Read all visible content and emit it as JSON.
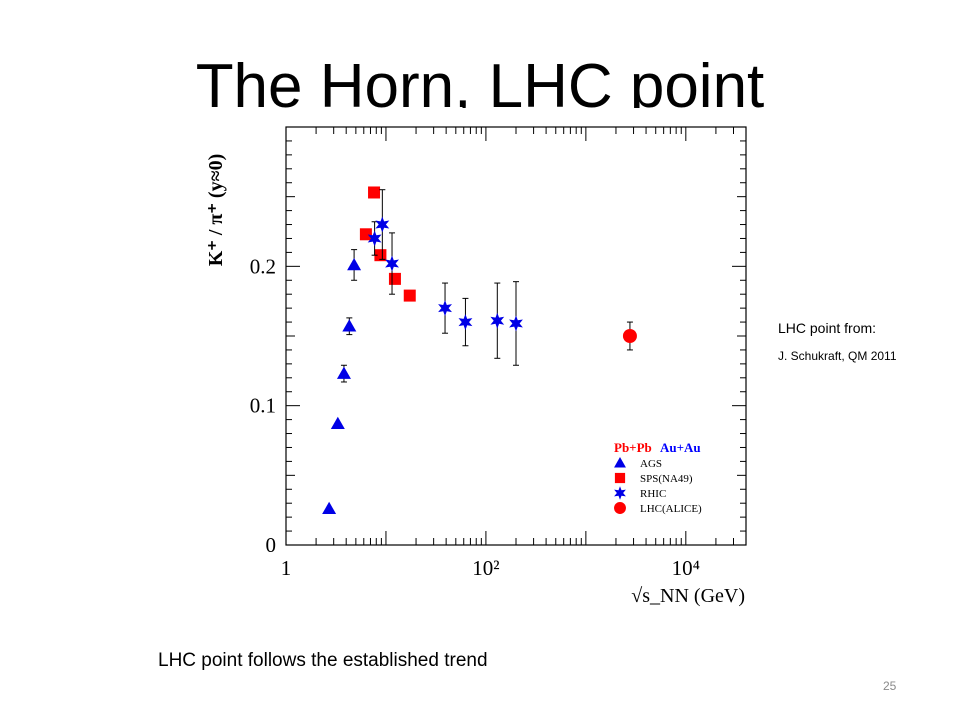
{
  "slide": {
    "title": "The Horn, LHC point",
    "note_title": "LHC point from:",
    "note_ref": "J. Schukraft, QM 2011",
    "caption": "LHC point follows the established trend",
    "page_number": "25"
  },
  "chart_data": {
    "type": "scatter",
    "ylabel": "K⁺ / π⁺ (y≈0)",
    "xlabel": "√s_NN (GeV)",
    "x_scale": "log",
    "xlim": [
      1,
      40000
    ],
    "ylim": [
      0,
      0.3
    ],
    "x_ticks": [
      {
        "value": 1,
        "label": "1"
      },
      {
        "value": 100,
        "label": "10²"
      },
      {
        "value": 10000,
        "label": "10⁴"
      }
    ],
    "y_ticks": [
      {
        "value": 0,
        "label": "0"
      },
      {
        "value": 0.1,
        "label": "0.1"
      },
      {
        "value": 0.2,
        "label": "0.2"
      }
    ],
    "legend": {
      "position": "bottom-right",
      "header_left": "Pb+Pb",
      "header_right": "Au+Au",
      "header_left_color": "#ff0000",
      "header_right_color": "#0000ff"
    },
    "series": [
      {
        "name": "AGS",
        "marker": "triangle",
        "color": "#0000e6",
        "points": [
          {
            "x": 2.7,
            "y": 0.026,
            "err": 0
          },
          {
            "x": 3.3,
            "y": 0.087,
            "err": 0
          },
          {
            "x": 3.8,
            "y": 0.123,
            "err": 0.006
          },
          {
            "x": 4.3,
            "y": 0.157,
            "err": 0.006
          },
          {
            "x": 4.8,
            "y": 0.201,
            "err": 0.011
          }
        ]
      },
      {
        "name": "SPS(NA49)",
        "marker": "square",
        "color": "#ff0000",
        "points": [
          {
            "x": 6.3,
            "y": 0.223,
            "err": 0
          },
          {
            "x": 7.6,
            "y": 0.253,
            "err": 0
          },
          {
            "x": 8.8,
            "y": 0.208,
            "err": 0
          },
          {
            "x": 12.3,
            "y": 0.191,
            "err": 0
          },
          {
            "x": 17.3,
            "y": 0.179,
            "err": 0
          }
        ]
      },
      {
        "name": "RHIC",
        "marker": "star",
        "color": "#0000e6",
        "points": [
          {
            "x": 7.7,
            "y": 0.22,
            "err": 0.012
          },
          {
            "x": 9.2,
            "y": 0.23,
            "err": 0.025
          },
          {
            "x": 11.5,
            "y": 0.202,
            "err": 0.022
          },
          {
            "x": 39,
            "y": 0.17,
            "err": 0.018
          },
          {
            "x": 62.4,
            "y": 0.16,
            "err": 0.017
          },
          {
            "x": 130,
            "y": 0.161,
            "err": 0.027
          },
          {
            "x": 200,
            "y": 0.159,
            "err": 0.03
          }
        ]
      },
      {
        "name": "LHC(ALICE)",
        "marker": "circle",
        "color": "#ff0000",
        "points": [
          {
            "x": 2760,
            "y": 0.15,
            "err": 0.01
          }
        ]
      }
    ]
  }
}
